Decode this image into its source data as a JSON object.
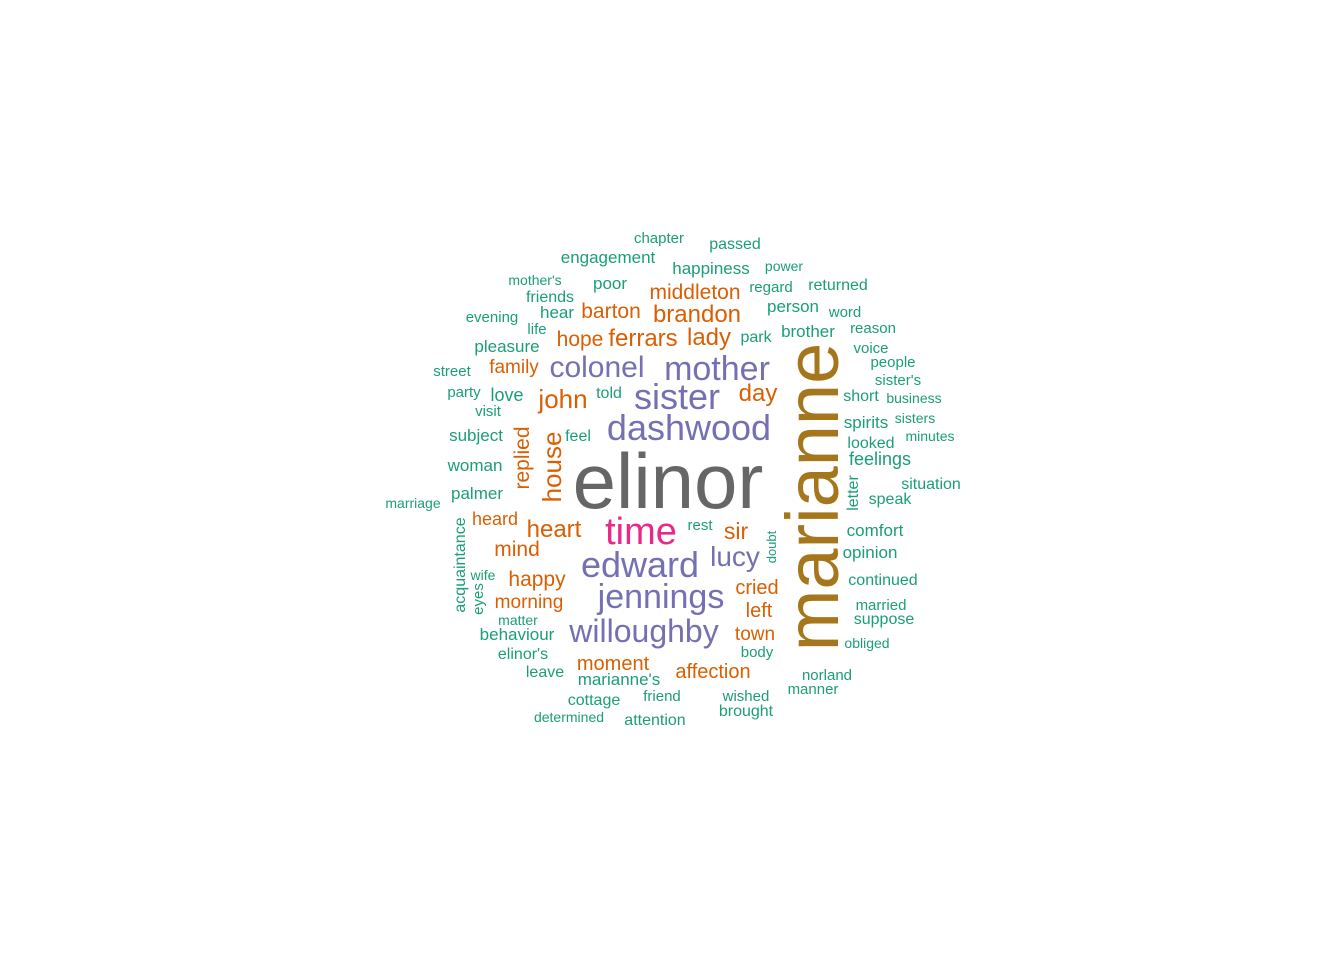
{
  "colors": {
    "gray": "#666666",
    "gold": "#A6761D",
    "magenta": "#E7298A",
    "purple": "#7570B3",
    "orange": "#D95F02",
    "green": "#1B9E77"
  },
  "words": [
    {
      "text": "elinor",
      "color": "gray"
    },
    {
      "text": "marianne",
      "color": "gold"
    },
    {
      "text": "time",
      "color": "magenta"
    },
    {
      "text": "dashwood",
      "color": "purple"
    },
    {
      "text": "sister",
      "color": "purple"
    },
    {
      "text": "mother",
      "color": "purple"
    },
    {
      "text": "colonel",
      "color": "purple"
    },
    {
      "text": "edward",
      "color": "purple"
    },
    {
      "text": "jennings",
      "color": "purple"
    },
    {
      "text": "willoughby",
      "color": "purple"
    },
    {
      "text": "lucy",
      "color": "purple"
    },
    {
      "text": "brandon",
      "color": "orange"
    },
    {
      "text": "ferrars",
      "color": "orange"
    },
    {
      "text": "lady",
      "color": "orange"
    },
    {
      "text": "john",
      "color": "orange"
    },
    {
      "text": "day",
      "color": "orange"
    },
    {
      "text": "middleton",
      "color": "orange"
    },
    {
      "text": "barton",
      "color": "orange"
    },
    {
      "text": "hope",
      "color": "orange"
    },
    {
      "text": "house",
      "color": "orange"
    },
    {
      "text": "heart",
      "color": "orange"
    },
    {
      "text": "sir",
      "color": "orange"
    },
    {
      "text": "replied",
      "color": "orange"
    },
    {
      "text": "family",
      "color": "orange"
    },
    {
      "text": "mind",
      "color": "orange"
    },
    {
      "text": "happy",
      "color": "orange"
    },
    {
      "text": "morning",
      "color": "orange"
    },
    {
      "text": "cried",
      "color": "orange"
    },
    {
      "text": "left",
      "color": "orange"
    },
    {
      "text": "town",
      "color": "orange"
    },
    {
      "text": "moment",
      "color": "orange"
    },
    {
      "text": "affection",
      "color": "orange"
    },
    {
      "text": "heard",
      "color": "orange"
    },
    {
      "text": "chapter",
      "color": "green"
    },
    {
      "text": "passed",
      "color": "green"
    },
    {
      "text": "engagement",
      "color": "green"
    },
    {
      "text": "happiness",
      "color": "green"
    },
    {
      "text": "power",
      "color": "green"
    },
    {
      "text": "mother's",
      "color": "green"
    },
    {
      "text": "poor",
      "color": "green"
    },
    {
      "text": "regard",
      "color": "green"
    },
    {
      "text": "returned",
      "color": "green"
    },
    {
      "text": "friends",
      "color": "green"
    },
    {
      "text": "person",
      "color": "green"
    },
    {
      "text": "word",
      "color": "green"
    },
    {
      "text": "evening",
      "color": "green"
    },
    {
      "text": "hear",
      "color": "green"
    },
    {
      "text": "life",
      "color": "green"
    },
    {
      "text": "park",
      "color": "green"
    },
    {
      "text": "brother",
      "color": "green"
    },
    {
      "text": "reason",
      "color": "green"
    },
    {
      "text": "pleasure",
      "color": "green"
    },
    {
      "text": "voice",
      "color": "green"
    },
    {
      "text": "people",
      "color": "green"
    },
    {
      "text": "street",
      "color": "green"
    },
    {
      "text": "sister's",
      "color": "green"
    },
    {
      "text": "party",
      "color": "green"
    },
    {
      "text": "love",
      "color": "green"
    },
    {
      "text": "told",
      "color": "green"
    },
    {
      "text": "short",
      "color": "green"
    },
    {
      "text": "business",
      "color": "green"
    },
    {
      "text": "visit",
      "color": "green"
    },
    {
      "text": "spirits",
      "color": "green"
    },
    {
      "text": "sisters",
      "color": "green"
    },
    {
      "text": "subject",
      "color": "green"
    },
    {
      "text": "feel",
      "color": "green"
    },
    {
      "text": "looked",
      "color": "green"
    },
    {
      "text": "minutes",
      "color": "green"
    },
    {
      "text": "feelings",
      "color": "green"
    },
    {
      "text": "woman",
      "color": "green"
    },
    {
      "text": "situation",
      "color": "green"
    },
    {
      "text": "letter",
      "color": "green"
    },
    {
      "text": "palmer",
      "color": "green"
    },
    {
      "text": "marriage",
      "color": "green"
    },
    {
      "text": "speak",
      "color": "green"
    },
    {
      "text": "rest",
      "color": "green"
    },
    {
      "text": "comfort",
      "color": "green"
    },
    {
      "text": "acquaintance",
      "color": "green"
    },
    {
      "text": "doubt",
      "color": "green"
    },
    {
      "text": "opinion",
      "color": "green"
    },
    {
      "text": "wife",
      "color": "green"
    },
    {
      "text": "continued",
      "color": "green"
    },
    {
      "text": "eyes",
      "color": "green"
    },
    {
      "text": "married",
      "color": "green"
    },
    {
      "text": "matter",
      "color": "green"
    },
    {
      "text": "suppose",
      "color": "green"
    },
    {
      "text": "behaviour",
      "color": "green"
    },
    {
      "text": "obliged",
      "color": "green"
    },
    {
      "text": "elinor's",
      "color": "green"
    },
    {
      "text": "body",
      "color": "green"
    },
    {
      "text": "leave",
      "color": "green"
    },
    {
      "text": "marianne's",
      "color": "green"
    },
    {
      "text": "norland",
      "color": "green"
    },
    {
      "text": "friend",
      "color": "green"
    },
    {
      "text": "wished",
      "color": "green"
    },
    {
      "text": "manner",
      "color": "green"
    },
    {
      "text": "cottage",
      "color": "green"
    },
    {
      "text": "brought",
      "color": "green"
    },
    {
      "text": "determined",
      "color": "green"
    },
    {
      "text": "attention",
      "color": "green"
    }
  ]
}
